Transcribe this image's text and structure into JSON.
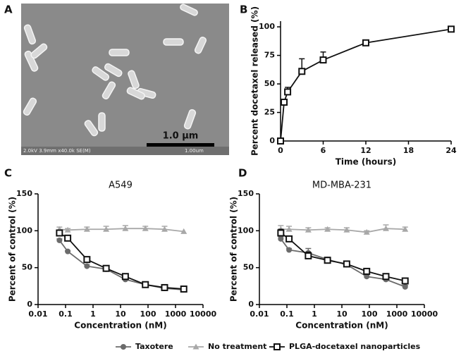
{
  "image_panel": {
    "label": "A",
    "scale_bar": "1.0 µm",
    "info": "2.0kV 3.9mm x40.0k SE(M)",
    "info_scale": "1.00um"
  },
  "chart_data": [
    {
      "type": "line",
      "label": "B",
      "xlabel": "Time (hours)",
      "ylabel": "Percent docetaxel released (%)",
      "x": [
        0,
        0.5,
        1,
        3,
        6,
        12,
        24
      ],
      "series": [
        {
          "name": "PLGA-docetaxel nanoparticles",
          "color": "#111111",
          "marker": "square",
          "values": [
            0,
            34,
            43,
            61,
            71,
            86,
            98
          ],
          "errors": [
            0,
            2,
            4,
            11,
            7,
            1,
            1
          ]
        }
      ],
      "xlim": [
        0,
        24
      ],
      "xticks": [
        0,
        6,
        12,
        18,
        24
      ],
      "ylim": [
        0,
        105
      ],
      "yticks": [
        0,
        25,
        50,
        75,
        100
      ]
    },
    {
      "type": "line",
      "label": "C",
      "title": "A549",
      "xlabel": "Concentration (nM)",
      "ylabel": "Percent of control (%)",
      "xscale": "log",
      "x": [
        0.06,
        0.12,
        0.6,
        3,
        15,
        80,
        400,
        2000
      ],
      "series": [
        {
          "name": "Taxotere",
          "color": "#6b6b6b",
          "marker": "circle",
          "values": [
            87,
            72,
            52,
            48,
            34,
            27,
            22,
            20
          ],
          "errors": [
            2,
            1,
            2,
            2,
            2,
            2,
            2,
            2
          ]
        },
        {
          "name": "No treatment",
          "color": "#a8a8a8",
          "marker": "triangle",
          "values": [
            102,
            101,
            102,
            102,
            103,
            103,
            102,
            99
          ],
          "errors": [
            3,
            2,
            3,
            4,
            4,
            3,
            4,
            0
          ]
        },
        {
          "name": "PLGA-docetaxel nanoparticles",
          "color": "#111111",
          "marker": "square",
          "values": [
            97,
            90,
            61,
            49,
            38,
            27,
            23,
            21
          ],
          "errors": [
            3,
            2,
            2,
            2,
            2,
            2,
            2,
            2
          ]
        }
      ],
      "xlim": [
        0.01,
        10000
      ],
      "xticks": [
        0.01,
        0.1,
        1,
        10,
        100,
        1000,
        10000
      ],
      "ylim": [
        0,
        150
      ],
      "yticks": [
        0,
        50,
        100,
        150
      ]
    },
    {
      "type": "line",
      "label": "D",
      "title": "MD-MBA-231",
      "xlabel": "Concentration (nM)",
      "ylabel": "Percent of control (%)",
      "xscale": "log",
      "x": [
        0.06,
        0.12,
        0.6,
        3,
        15,
        80,
        400,
        2000
      ],
      "series": [
        {
          "color": "#6b6b6b",
          "marker": "circle",
          "values": [
            89,
            74,
            70,
            61,
            54,
            38,
            34,
            24
          ],
          "errors": [
            3,
            2,
            6,
            3,
            3,
            2,
            2,
            2
          ]
        },
        {
          "color": "#a8a8a8",
          "marker": "triangle",
          "values": [
            102,
            102,
            101,
            102,
            101,
            98,
            103,
            102
          ],
          "errors": [
            5,
            4,
            3,
            2,
            3,
            2,
            5,
            3
          ]
        },
        {
          "color": "#111111",
          "marker": "square",
          "values": [
            97,
            89,
            66,
            60,
            55,
            45,
            38,
            32
          ],
          "errors": [
            5,
            3,
            5,
            3,
            3,
            2,
            2,
            2
          ]
        }
      ],
      "xlim": [
        0.01,
        10000
      ],
      "xticks": [
        0.01,
        0.1,
        1,
        10,
        100,
        1000,
        10000
      ],
      "ylim": [
        0,
        150
      ],
      "yticks": [
        0,
        50,
        100,
        150
      ]
    }
  ]
}
